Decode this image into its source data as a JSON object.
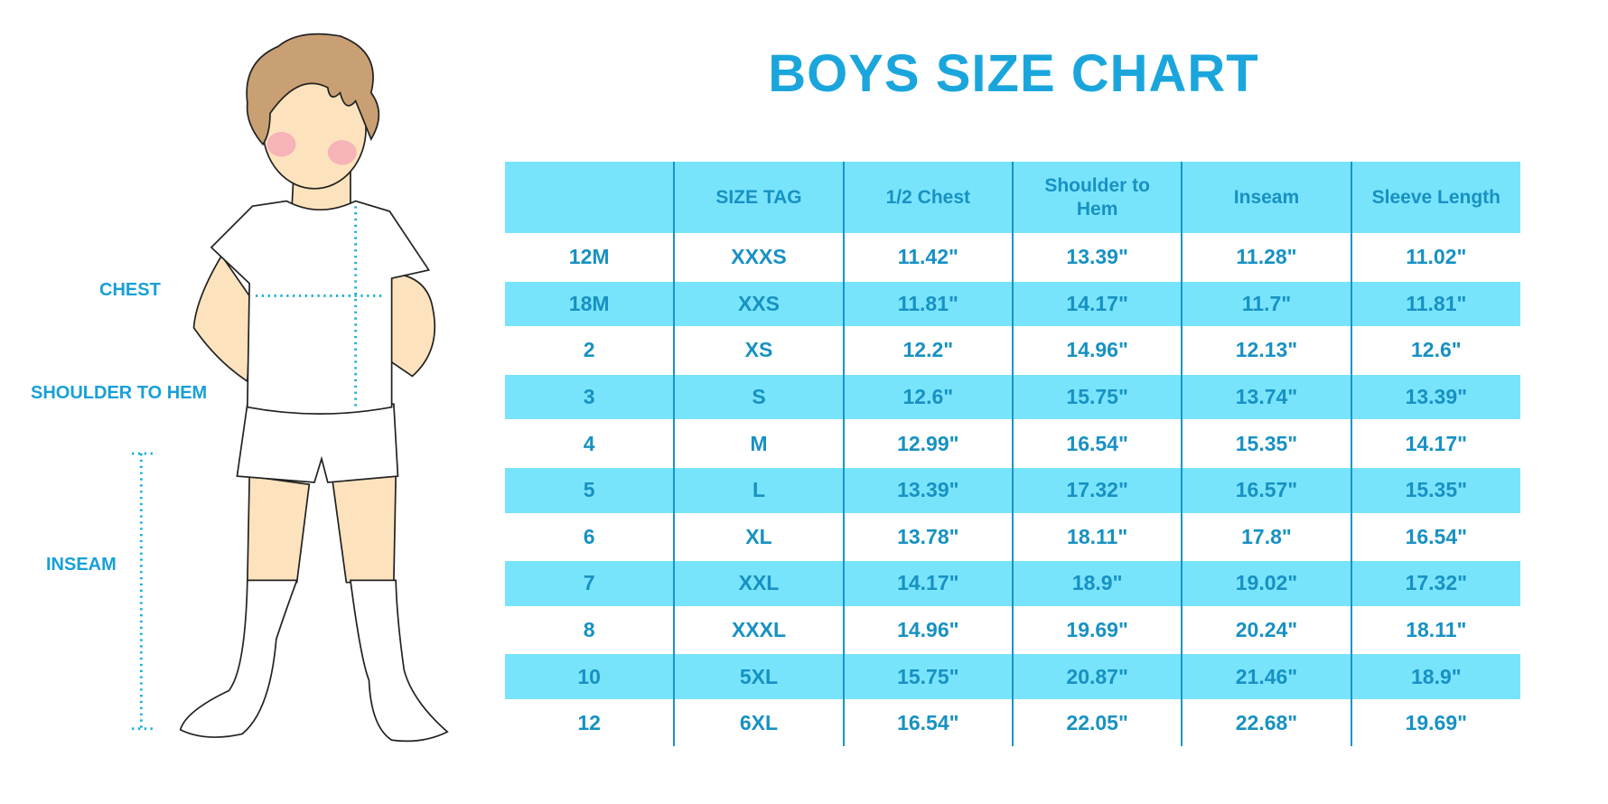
{
  "title": "BOYS SIZE CHART",
  "labels": {
    "chest": "CHEST",
    "shoulder_to_hem": "SHOULDER TO HEM",
    "inseam": "INSEAM"
  },
  "colors": {
    "header_bg": "#78e4fc",
    "text": "#1791c2",
    "title": "#1aa6dc"
  },
  "table": {
    "headers": [
      "",
      "SIZE TAG",
      "1/2 Chest",
      "Shoulder to Hem",
      "Inseam",
      "Sleeve Length"
    ],
    "rows": [
      [
        "12M",
        "XXXS",
        "11.42\"",
        "13.39\"",
        "11.28\"",
        "11.02\""
      ],
      [
        "18M",
        "XXS",
        "11.81\"",
        "14.17\"",
        "11.7\"",
        "11.81\""
      ],
      [
        "2",
        "XS",
        "12.2\"",
        "14.96\"",
        "12.13\"",
        "12.6\""
      ],
      [
        "3",
        "S",
        "12.6\"",
        "15.75\"",
        "13.74\"",
        "13.39\""
      ],
      [
        "4",
        "M",
        "12.99\"",
        "16.54\"",
        "15.35\"",
        "14.17\""
      ],
      [
        "5",
        "L",
        "13.39\"",
        "17.32\"",
        "16.57\"",
        "15.35\""
      ],
      [
        "6",
        "XL",
        "13.78\"",
        "18.11\"",
        "17.8\"",
        "16.54\""
      ],
      [
        "7",
        "XXL",
        "14.17\"",
        "18.9\"",
        "19.02\"",
        "17.32\""
      ],
      [
        "8",
        "XXXL",
        "14.96\"",
        "19.69\"",
        "20.24\"",
        "18.11\""
      ],
      [
        "10",
        "5XL",
        "15.75\"",
        "20.87\"",
        "21.46\"",
        "18.9\""
      ],
      [
        "12",
        "6XL",
        "16.54\"",
        "22.05\"",
        "22.68\"",
        "19.69\""
      ]
    ]
  }
}
